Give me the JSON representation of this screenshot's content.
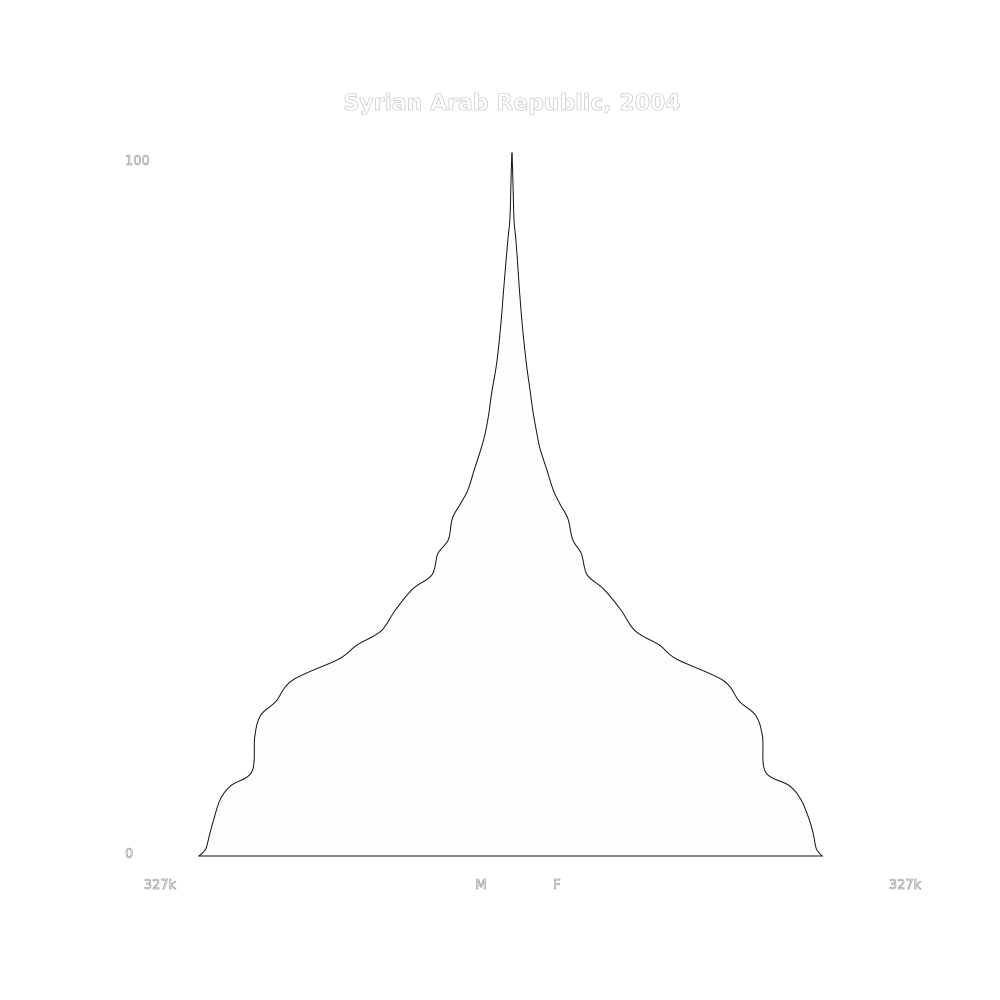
{
  "chart_data": {
    "type": "area",
    "title": "Syrian Arab Republic, 2004",
    "ytick_labels": [
      "100",
      "0"
    ],
    "ylim": [
      0,
      100
    ],
    "xlim_labels": [
      "327k",
      "327k"
    ],
    "xlim": [
      -327000,
      327000
    ],
    "center_labels": [
      "M",
      "F"
    ],
    "series": [
      {
        "name": "M",
        "age": [
          0,
          1,
          3,
          5,
          8,
          10,
          12,
          17,
          20,
          22,
          25,
          28,
          30,
          32,
          35,
          38,
          40,
          43,
          45,
          48,
          50,
          52,
          55,
          58,
          60,
          63,
          66,
          70,
          75,
          80,
          85,
          88,
          90,
          92,
          95,
          98,
          100
        ],
        "values": [
          -325000,
          -318000,
          -314000,
          -310000,
          -303000,
          -292000,
          -270000,
          -267000,
          -261000,
          -245000,
          -228000,
          -180000,
          -161000,
          -136000,
          -121000,
          -103000,
          -83000,
          -77000,
          -66000,
          -62000,
          -54000,
          -46000,
          -39000,
          -32000,
          -28000,
          -24000,
          -21000,
          -16000,
          -12000,
          -9000,
          -6000,
          -4000,
          -2500,
          -1800,
          -1200,
          -600,
          -200
        ]
      },
      {
        "name": "F",
        "values": [
          322000,
          316000,
          313000,
          309000,
          300000,
          288000,
          263000,
          260000,
          253000,
          236000,
          219000,
          171000,
          153000,
          128000,
          113000,
          95000,
          78000,
          72000,
          63000,
          58000,
          50000,
          43000,
          36000,
          29000,
          26000,
          22000,
          19000,
          15000,
          11000,
          8000,
          5500,
          3800,
          2300,
          1700,
          1100,
          500,
          200
        ]
      }
    ],
    "colors": {
      "fill": "#fdfdfd",
      "outline": "#111111",
      "text": "#ffffff"
    }
  }
}
